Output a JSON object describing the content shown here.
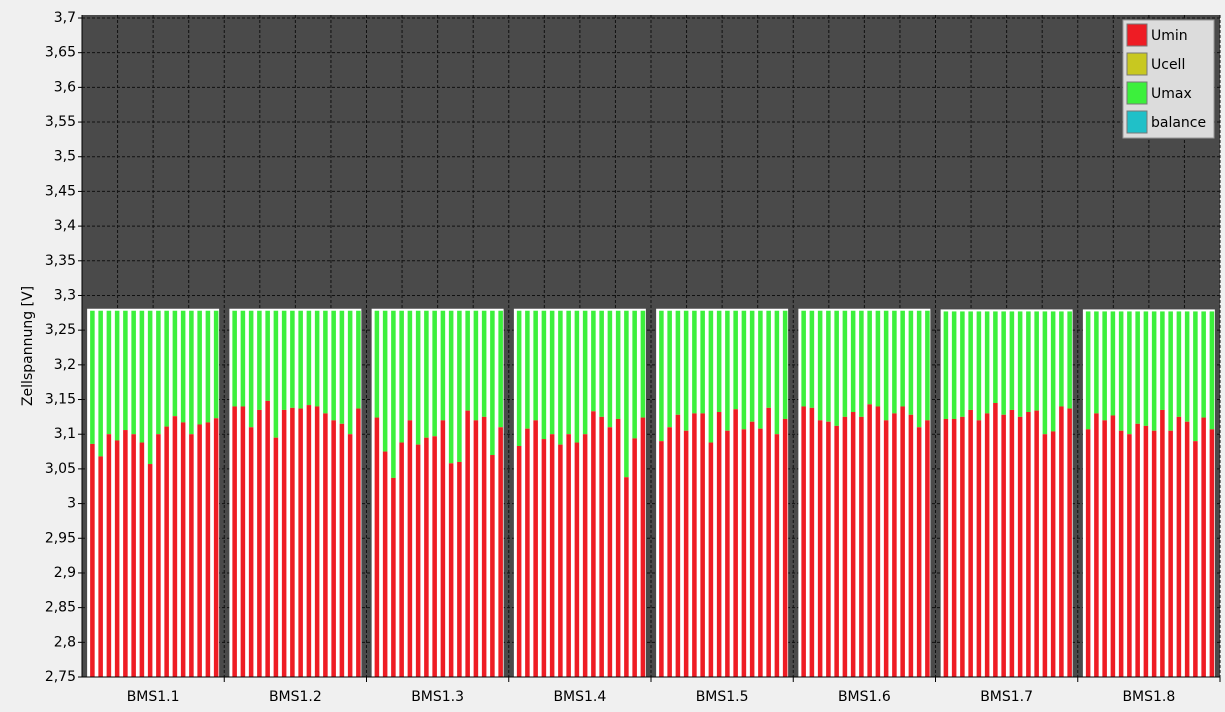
{
  "chart_data": {
    "type": "cellbars",
    "y_label": "Zellspannung [V]",
    "categories": [
      "BMS1.1",
      "BMS1.2",
      "BMS1.3",
      "BMS1.4",
      "BMS1.5",
      "BMS1.6",
      "BMS1.7",
      "BMS1.8"
    ],
    "series": [
      {
        "name": "Umin",
        "color": "#ee1c24",
        "values": [
          [
            3.086,
            3.068,
            3.1,
            3.091,
            3.106,
            3.1,
            3.088,
            3.057,
            3.1,
            3.111,
            3.126,
            3.117,
            3.1,
            3.114,
            3.117,
            3.123
          ],
          [
            3.14,
            3.14,
            3.11,
            3.135,
            3.148,
            3.095,
            3.135,
            3.138,
            3.137,
            3.142,
            3.14,
            3.13,
            3.12,
            3.115,
            3.1,
            3.137
          ],
          [
            3.124,
            3.075,
            3.037,
            3.088,
            3.12,
            3.085,
            3.095,
            3.097,
            3.12,
            3.058,
            3.06,
            3.134,
            3.12,
            3.125,
            3.07,
            3.11
          ],
          [
            3.083,
            3.108,
            3.12,
            3.093,
            3.1,
            3.085,
            3.1,
            3.088,
            3.1,
            3.133,
            3.125,
            3.11,
            3.122,
            3.038,
            3.094,
            3.124
          ],
          [
            3.09,
            3.11,
            3.128,
            3.105,
            3.13,
            3.13,
            3.088,
            3.132,
            3.105,
            3.136,
            3.107,
            3.118,
            3.108,
            3.138,
            3.1,
            3.122
          ],
          [
            3.14,
            3.138,
            3.12,
            3.118,
            3.112,
            3.125,
            3.132,
            3.125,
            3.143,
            3.14,
            3.12,
            3.13,
            3.14,
            3.128,
            3.11,
            3.12
          ],
          [
            3.122,
            3.122,
            3.125,
            3.135,
            3.12,
            3.13,
            3.145,
            3.128,
            3.135,
            3.125,
            3.132,
            3.134,
            3.1,
            3.104,
            3.14,
            3.137
          ],
          [
            3.107,
            3.13,
            3.12,
            3.127,
            3.105,
            3.1,
            3.115,
            3.112,
            3.105,
            3.135,
            3.105,
            3.125,
            3.118,
            3.09,
            3.124,
            3.107
          ]
        ]
      },
      {
        "name": "Ucell",
        "color": "#c8c820"
      },
      {
        "name": "Umax",
        "color": "#3cf03c",
        "values": [
          [
            3.278,
            3.278,
            3.278,
            3.278,
            3.278,
            3.278,
            3.278,
            3.278,
            3.278,
            3.278,
            3.278,
            3.278,
            3.278,
            3.278,
            3.278,
            3.278
          ],
          [
            3.278,
            3.278,
            3.278,
            3.278,
            3.278,
            3.278,
            3.278,
            3.278,
            3.278,
            3.278,
            3.278,
            3.278,
            3.278,
            3.278,
            3.278,
            3.278
          ],
          [
            3.278,
            3.278,
            3.278,
            3.278,
            3.278,
            3.278,
            3.278,
            3.278,
            3.278,
            3.278,
            3.278,
            3.278,
            3.278,
            3.278,
            3.278,
            3.278
          ],
          [
            3.278,
            3.278,
            3.278,
            3.278,
            3.278,
            3.278,
            3.278,
            3.278,
            3.278,
            3.278,
            3.278,
            3.278,
            3.278,
            3.278,
            3.278,
            3.278
          ],
          [
            3.278,
            3.278,
            3.278,
            3.278,
            3.278,
            3.278,
            3.278,
            3.278,
            3.278,
            3.278,
            3.278,
            3.278,
            3.278,
            3.278,
            3.278,
            3.278
          ],
          [
            3.278,
            3.278,
            3.278,
            3.278,
            3.278,
            3.278,
            3.278,
            3.278,
            3.278,
            3.278,
            3.278,
            3.278,
            3.278,
            3.278,
            3.278,
            3.278
          ],
          [
            3.277,
            3.277,
            3.277,
            3.277,
            3.277,
            3.277,
            3.277,
            3.277,
            3.277,
            3.277,
            3.277,
            3.277,
            3.277,
            3.277,
            3.277,
            3.277
          ],
          [
            3.277,
            3.277,
            3.277,
            3.277,
            3.277,
            3.277,
            3.277,
            3.277,
            3.277,
            3.277,
            3.277,
            3.277,
            3.277,
            3.277,
            3.277,
            3.277
          ]
        ]
      },
      {
        "name": "balance",
        "color": "#20c0c8"
      }
    ],
    "ylim": [
      2.75,
      3.7
    ],
    "yticks": [
      {
        "value": 2.75,
        "label": "2,75"
      },
      {
        "value": 2.8,
        "label": "2,8"
      },
      {
        "value": 2.85,
        "label": "2,85"
      },
      {
        "value": 2.9,
        "label": "2,9"
      },
      {
        "value": 2.95,
        "label": "2,95"
      },
      3,
      {
        "value": 3.05,
        "label": "3,05"
      },
      {
        "value": 3.1,
        "label": "3,1"
      },
      {
        "value": 3.15,
        "label": "3,15"
      },
      {
        "value": 3.2,
        "label": "3,2"
      },
      {
        "value": 3.25,
        "label": "3,25"
      },
      {
        "value": 3.3,
        "label": "3,3"
      },
      {
        "value": 3.35,
        "label": "3,35"
      },
      {
        "value": 3.4,
        "label": "3,4"
      },
      {
        "value": 3.45,
        "label": "3,45"
      },
      {
        "value": 3.5,
        "label": "3,5"
      },
      {
        "value": 3.55,
        "label": "3,55"
      },
      {
        "value": 3.6,
        "label": "3,6"
      },
      {
        "value": 3.65,
        "label": "3,65"
      },
      {
        "value": 3.7,
        "label": "3,7"
      }
    ],
    "grid": true,
    "legend": "top-right"
  }
}
